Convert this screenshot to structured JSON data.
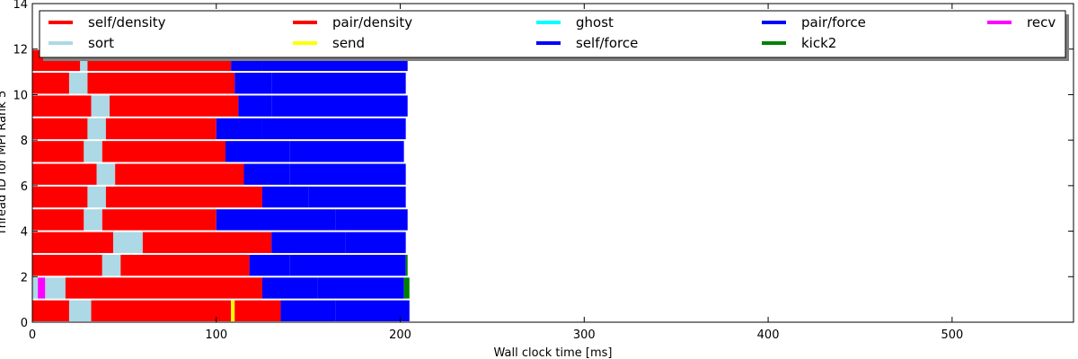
{
  "chart_data": {
    "type": "bar",
    "orientation": "horizontal-timeline",
    "xlabel": "Wall clock time [ms]",
    "ylabel": "Thread ID for MPI Rank 5",
    "xlim": [
      0,
      566
    ],
    "ylim": [
      0,
      14
    ],
    "xticks": [
      0,
      100,
      200,
      300,
      400,
      500
    ],
    "yticks": [
      0,
      2,
      4,
      6,
      8,
      10,
      12,
      14
    ],
    "grid": false,
    "legend_placement": "top",
    "legend": [
      {
        "name": "self/density",
        "color": "#ff0000"
      },
      {
        "name": "sort",
        "color": "#add8e6"
      },
      {
        "name": "pair/density",
        "color": "#ff0000"
      },
      {
        "name": "send",
        "color": "#ffff00"
      },
      {
        "name": "ghost",
        "color": "#00ffff"
      },
      {
        "name": "self/force",
        "color": "#0000ff"
      },
      {
        "name": "pair/force",
        "color": "#0000ff"
      },
      {
        "name": "kick2",
        "color": "#008000"
      },
      {
        "name": "recv",
        "color": "#ff00ff"
      }
    ],
    "threads": [
      {
        "id": 0,
        "segments": [
          {
            "task": "self/density",
            "start": 0,
            "end": 20
          },
          {
            "task": "sort",
            "start": 20,
            "end": 32
          },
          {
            "task": "pair/density",
            "start": 32,
            "end": 108
          },
          {
            "task": "send",
            "start": 108,
            "end": 110
          },
          {
            "task": "pair/density",
            "start": 110,
            "end": 135
          },
          {
            "task": "pair/force",
            "start": 135,
            "end": 165
          },
          {
            "task": "self/force",
            "start": 165,
            "end": 205
          }
        ]
      },
      {
        "id": 1,
        "segments": [
          {
            "task": "sort",
            "start": 0,
            "end": 3
          },
          {
            "task": "recv",
            "start": 3,
            "end": 7
          },
          {
            "task": "sort",
            "start": 7,
            "end": 18
          },
          {
            "task": "pair/density",
            "start": 18,
            "end": 125
          },
          {
            "task": "pair/force",
            "start": 125,
            "end": 155
          },
          {
            "task": "self/force",
            "start": 155,
            "end": 202
          },
          {
            "task": "kick2",
            "start": 202,
            "end": 205
          }
        ]
      },
      {
        "id": 2,
        "segments": [
          {
            "task": "self/density",
            "start": 0,
            "end": 38
          },
          {
            "task": "sort",
            "start": 38,
            "end": 48
          },
          {
            "task": "pair/density",
            "start": 48,
            "end": 118
          },
          {
            "task": "pair/force",
            "start": 118,
            "end": 140
          },
          {
            "task": "self/force",
            "start": 140,
            "end": 203
          },
          {
            "task": "kick2",
            "start": 203,
            "end": 204
          }
        ]
      },
      {
        "id": 3,
        "segments": [
          {
            "task": "self/density",
            "start": 0,
            "end": 44
          },
          {
            "task": "sort",
            "start": 44,
            "end": 60
          },
          {
            "task": "pair/density",
            "start": 60,
            "end": 130
          },
          {
            "task": "pair/force",
            "start": 130,
            "end": 170
          },
          {
            "task": "self/force",
            "start": 170,
            "end": 203
          }
        ]
      },
      {
        "id": 4,
        "segments": [
          {
            "task": "self/density",
            "start": 0,
            "end": 28
          },
          {
            "task": "sort",
            "start": 28,
            "end": 38
          },
          {
            "task": "pair/density",
            "start": 38,
            "end": 100
          },
          {
            "task": "pair/force",
            "start": 100,
            "end": 165
          },
          {
            "task": "self/force",
            "start": 165,
            "end": 204
          }
        ]
      },
      {
        "id": 5,
        "segments": [
          {
            "task": "self/density",
            "start": 0,
            "end": 30
          },
          {
            "task": "sort",
            "start": 30,
            "end": 40
          },
          {
            "task": "pair/density",
            "start": 40,
            "end": 125
          },
          {
            "task": "pair/force",
            "start": 125,
            "end": 150
          },
          {
            "task": "self/force",
            "start": 150,
            "end": 203
          }
        ]
      },
      {
        "id": 6,
        "segments": [
          {
            "task": "self/density",
            "start": 0,
            "end": 35
          },
          {
            "task": "sort",
            "start": 35,
            "end": 45
          },
          {
            "task": "pair/density",
            "start": 45,
            "end": 115
          },
          {
            "task": "pair/force",
            "start": 115,
            "end": 140
          },
          {
            "task": "self/force",
            "start": 140,
            "end": 203
          }
        ]
      },
      {
        "id": 7,
        "segments": [
          {
            "task": "self/density",
            "start": 0,
            "end": 28
          },
          {
            "task": "sort",
            "start": 28,
            "end": 38
          },
          {
            "task": "pair/density",
            "start": 38,
            "end": 105
          },
          {
            "task": "pair/force",
            "start": 105,
            "end": 140
          },
          {
            "task": "self/force",
            "start": 140,
            "end": 202
          }
        ]
      },
      {
        "id": 8,
        "segments": [
          {
            "task": "self/density",
            "start": 0,
            "end": 30
          },
          {
            "task": "sort",
            "start": 30,
            "end": 40
          },
          {
            "task": "pair/density",
            "start": 40,
            "end": 100
          },
          {
            "task": "pair/force",
            "start": 100,
            "end": 125
          },
          {
            "task": "self/force",
            "start": 125,
            "end": 203
          }
        ]
      },
      {
        "id": 9,
        "segments": [
          {
            "task": "self/density",
            "start": 0,
            "end": 32
          },
          {
            "task": "sort",
            "start": 32,
            "end": 42
          },
          {
            "task": "pair/density",
            "start": 42,
            "end": 112
          },
          {
            "task": "pair/force",
            "start": 112,
            "end": 130
          },
          {
            "task": "self/force",
            "start": 130,
            "end": 204
          }
        ]
      },
      {
        "id": 10,
        "segments": [
          {
            "task": "self/density",
            "start": 0,
            "end": 20
          },
          {
            "task": "sort",
            "start": 20,
            "end": 30
          },
          {
            "task": "pair/density",
            "start": 30,
            "end": 110
          },
          {
            "task": "pair/force",
            "start": 110,
            "end": 130
          },
          {
            "task": "self/force",
            "start": 130,
            "end": 203
          }
        ]
      },
      {
        "id": 11,
        "segments": [
          {
            "task": "self/density",
            "start": 0,
            "end": 26
          },
          {
            "task": "sort",
            "start": 26,
            "end": 30
          },
          {
            "task": "pair/density",
            "start": 30,
            "end": 108
          },
          {
            "task": "pair/force",
            "start": 108,
            "end": 125
          },
          {
            "task": "self/force",
            "start": 125,
            "end": 204
          }
        ]
      }
    ]
  }
}
